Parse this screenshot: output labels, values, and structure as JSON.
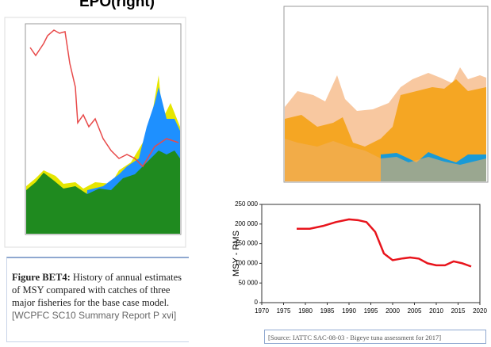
{
  "header": {
    "title": "EPO(right)"
  },
  "caption": {
    "label": "Figure BET4:",
    "text": "History of annual estimates of MSY compared with catches of three major fisheries for the base case model.",
    "reference": "[WCPFC SC10 Summary Report P xvi]"
  },
  "source": "[Source: IATTC SAC-08-03 - Bigeye tuna assessment for 2017]",
  "chart_data": {
    "type": "line",
    "y_label": "MSY - RMS",
    "x": [
      1978,
      1981,
      1984,
      1987,
      1990,
      1992,
      1994,
      1996,
      1998,
      2000,
      2002,
      2004,
      2006,
      2008,
      2010,
      2012,
      2014,
      2016,
      2018
    ],
    "series": [
      {
        "name": "MSY",
        "color": "#e8141c",
        "values": [
          188000,
          188000,
          195000,
          205000,
          212000,
          210000,
          205000,
          180000,
          125000,
          108000,
          112000,
          115000,
          112000,
          100000,
          95000,
          95000,
          105000,
          100000,
          92000
        ]
      }
    ],
    "xlim": [
      1970,
      2020
    ],
    "xticks": [
      1970,
      1975,
      1980,
      1985,
      1990,
      1995,
      2000,
      2005,
      2010,
      2015,
      2020
    ],
    "ylim": [
      0,
      250000
    ],
    "yticks": [
      {
        "value": 0,
        "label": "0"
      },
      {
        "value": 50000,
        "label": "50 000"
      },
      {
        "value": 100000,
        "label": "100 000"
      },
      {
        "value": 150000,
        "label": "150 000"
      },
      {
        "value": 200000,
        "label": "200 000"
      },
      {
        "value": 250000,
        "label": "250 000"
      }
    ]
  }
}
